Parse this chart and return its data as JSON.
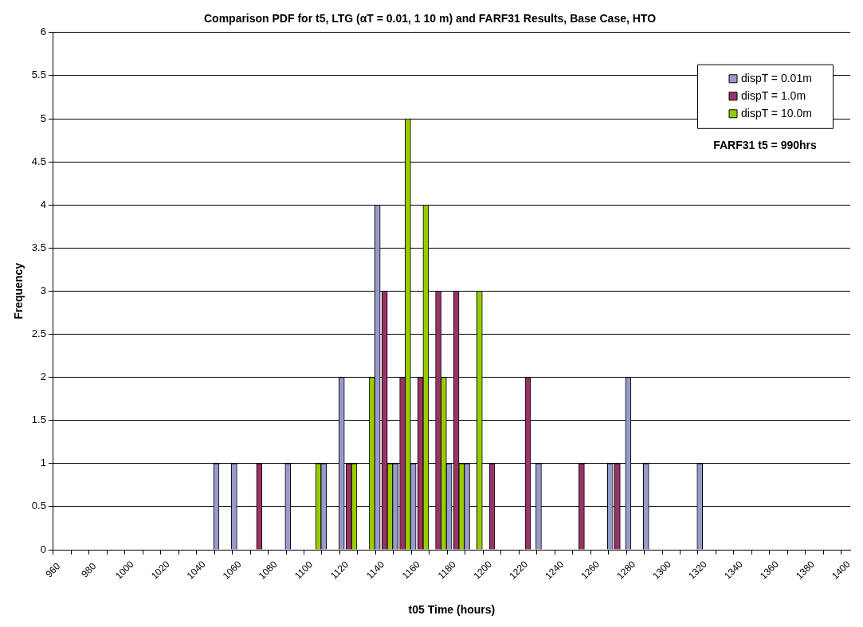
{
  "chart_data": {
    "type": "bar",
    "title": "Comparison PDF for t5, LTG (αT = 0.01, 1 10 m) and FARF31 Results, Base Case, HTO",
    "xlabel": "t05 Time (hours)",
    "ylabel": "Frequency",
    "series": [
      {
        "name": "dispT = 0.01m",
        "color": "#9999cc",
        "x": [
          1051,
          1061,
          1091,
          1111,
          1121,
          1141,
          1151,
          1161,
          1181,
          1191,
          1231,
          1271,
          1281,
          1291,
          1321
        ],
        "values": [
          1,
          1,
          1,
          1,
          2,
          4,
          1,
          1,
          1,
          1,
          1,
          1,
          2,
          1,
          1
        ]
      },
      {
        "name": "dispT = 1.0m",
        "color": "#993366",
        "x": [
          1075,
          1125,
          1145,
          1155,
          1165,
          1175,
          1185,
          1205,
          1225,
          1255,
          1275
        ],
        "values": [
          1,
          1,
          3,
          2,
          2,
          3,
          3,
          1,
          2,
          1,
          1
        ]
      },
      {
        "name": "dispT = 10.0m",
        "color": "#99cc00",
        "x": [
          1108,
          1128,
          1138,
          1148,
          1158,
          1168,
          1178,
          1188,
          1198
        ],
        "values": [
          1,
          1,
          2,
          1,
          5,
          4,
          2,
          1,
          3
        ]
      }
    ],
    "xlim": [
      960,
      1405
    ],
    "xticks": [
      960,
      {
        "value": 970,
        "label": null
      },
      980,
      {
        "value": 990,
        "label": null
      },
      1000,
      {
        "value": 1010,
        "label": null
      },
      1020,
      {
        "value": 1030,
        "label": null
      },
      1040,
      {
        "value": 1050,
        "label": null
      },
      1060,
      {
        "value": 1070,
        "label": null
      },
      1080,
      {
        "value": 1090,
        "label": null
      },
      1100,
      {
        "value": 1110,
        "label": null
      },
      1120,
      {
        "value": 1130,
        "label": null
      },
      1140,
      {
        "value": 1150,
        "label": null
      },
      1160,
      {
        "value": 1170,
        "label": null
      },
      1180,
      {
        "value": 1190,
        "label": null
      },
      1200,
      {
        "value": 1210,
        "label": null
      },
      1220,
      {
        "value": 1230,
        "label": null
      },
      1240,
      {
        "value": 1250,
        "label": null
      },
      1260,
      {
        "value": 1270,
        "label": null
      },
      1280,
      {
        "value": 1290,
        "label": null
      },
      1300,
      {
        "value": 1310,
        "label": null
      },
      1320,
      {
        "value": 1330,
        "label": null
      },
      1340,
      {
        "value": 1350,
        "label": null
      },
      1360,
      {
        "value": 1370,
        "label": null
      },
      1380,
      {
        "value": 1390,
        "label": null
      },
      1400
    ],
    "ylim": [
      0,
      6
    ],
    "yticks": [
      0,
      0.5,
      1,
      1.5,
      2,
      2.5,
      3,
      3.5,
      4,
      4.5,
      5,
      5.5,
      6
    ],
    "grid": "y",
    "legend": "top right",
    "annotations": [
      "FARF31 t5 = 990hrs"
    ]
  }
}
